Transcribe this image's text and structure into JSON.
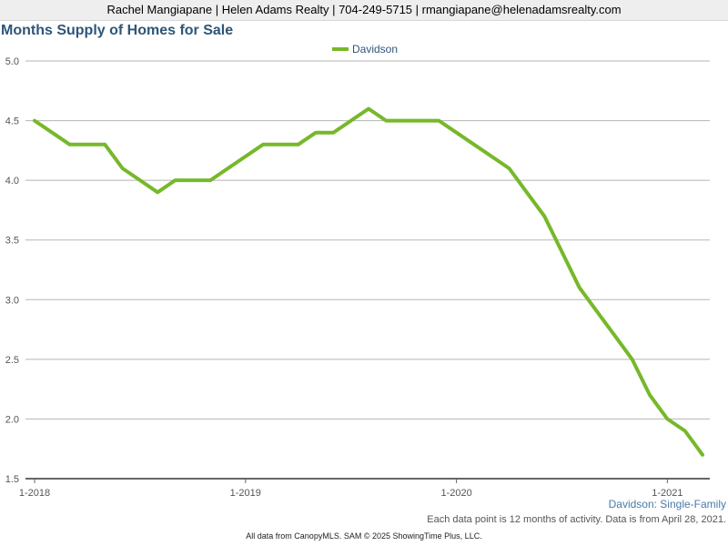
{
  "header": {
    "contact_line": "Rachel Mangiapane | Helen Adams Realty | 704-249-5715 | rmangiapane@helenadamsrealty.com"
  },
  "colors": {
    "series": "#76b82a",
    "title": "#2e5578",
    "grid": "#b5b5b5",
    "axis": "#666666",
    "caption": "#4a79a8"
  },
  "chart_data": {
    "type": "line",
    "title": "Months Supply of Homes for Sale",
    "xlabel": "",
    "ylabel": "",
    "ylim": [
      1.5,
      5.0
    ],
    "y_ticks": [
      "1.5",
      "2.0",
      "2.5",
      "3.0",
      "3.5",
      "4.0",
      "4.5",
      "5.0"
    ],
    "x_tick_labels": [
      "1-2018",
      "1-2019",
      "1-2020",
      "1-2021"
    ],
    "grid": true,
    "legend_position": "top-center",
    "x": [
      "1-2018",
      "2-2018",
      "3-2018",
      "4-2018",
      "5-2018",
      "6-2018",
      "7-2018",
      "8-2018",
      "9-2018",
      "10-2018",
      "11-2018",
      "12-2018",
      "1-2019",
      "2-2019",
      "3-2019",
      "4-2019",
      "5-2019",
      "6-2019",
      "7-2019",
      "8-2019",
      "9-2019",
      "10-2019",
      "11-2019",
      "12-2019",
      "1-2020",
      "2-2020",
      "3-2020",
      "4-2020",
      "5-2020",
      "6-2020",
      "7-2020",
      "8-2020",
      "9-2020",
      "10-2020",
      "11-2020",
      "12-2020",
      "1-2021",
      "2-2021",
      "3-2021"
    ],
    "series": [
      {
        "name": "Davidson",
        "values": [
          4.5,
          4.4,
          4.3,
          4.3,
          4.3,
          4.1,
          4.0,
          3.9,
          4.0,
          4.0,
          4.0,
          4.1,
          4.2,
          4.3,
          4.3,
          4.3,
          4.4,
          4.4,
          4.5,
          4.6,
          4.5,
          4.5,
          4.5,
          4.5,
          4.4,
          4.3,
          4.2,
          4.1,
          3.9,
          3.7,
          3.4,
          3.1,
          2.9,
          2.7,
          2.5,
          2.2,
          2.0,
          1.9,
          1.7
        ]
      }
    ],
    "series_caption": "Davidson: Single-Family",
    "note": "Each data point is 12 months of activity. Data is from April 28, 2021."
  },
  "footer": {
    "text": "All data from CanopyMLS. SAM © 2025 ShowingTime Plus, LLC."
  }
}
